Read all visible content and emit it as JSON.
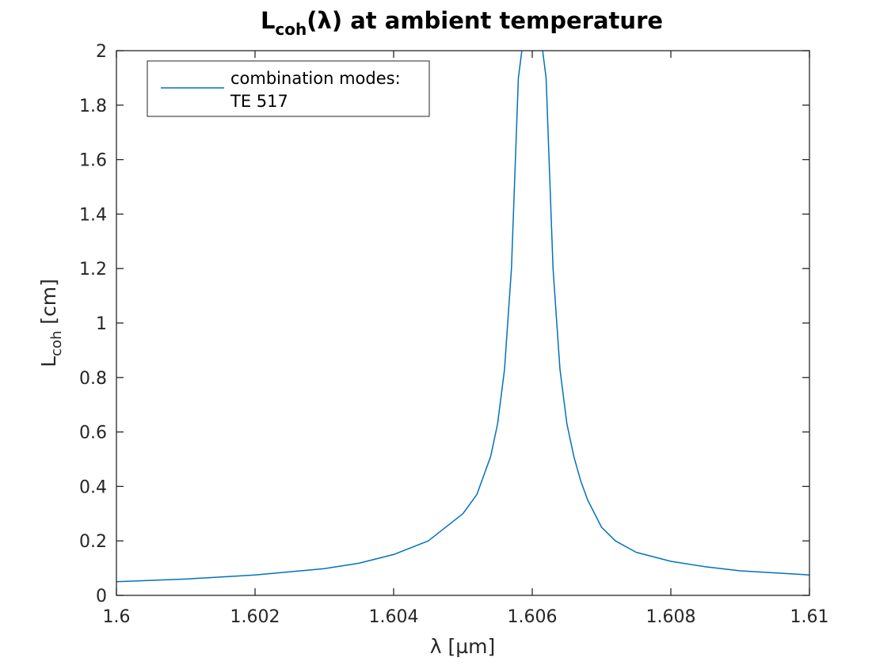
{
  "chart_data": {
    "type": "line",
    "title": {
      "main": "L",
      "sub": "coh",
      "rest": "(λ) at ambient temperature"
    },
    "xlabel": "λ [µm]",
    "ylabel": {
      "main": "L",
      "sub": "coh",
      "rest": " [cm]"
    },
    "xlim": [
      1.6,
      1.61
    ],
    "ylim": [
      0,
      2
    ],
    "xticks": [
      1.6,
      1.602,
      1.604,
      1.606,
      1.608,
      1.61
    ],
    "xtick_labels": [
      "1.6",
      "1.602",
      "1.604",
      "1.606",
      "1.608",
      "1.61"
    ],
    "yticks": [
      0,
      0.2,
      0.4,
      0.6,
      0.8,
      1,
      1.2,
      1.4,
      1.6,
      1.8,
      2
    ],
    "ytick_labels": [
      "0",
      "0.2",
      "0.4",
      "0.6",
      "0.8",
      "1",
      "1.2",
      "1.4",
      "1.6",
      "1.8",
      "2"
    ],
    "grid": false,
    "legend_position": "top-left",
    "legend_lines": [
      "combination modes:",
      "TE 517"
    ],
    "series": [
      {
        "color": "#0072BD",
        "x": [
          1.6,
          1.601,
          1.602,
          1.603,
          1.6035,
          1.604,
          1.6045,
          1.605,
          1.6052,
          1.6054,
          1.6055,
          1.6056,
          1.6057,
          1.6058,
          1.60585,
          1.606,
          1.60615,
          1.6062,
          1.6063,
          1.6064,
          1.6065,
          1.6066,
          1.6067,
          1.6068,
          1.607,
          1.6072,
          1.6075,
          1.608,
          1.6085,
          1.609,
          1.61
        ],
        "y": [
          0.05,
          0.06,
          0.075,
          0.098,
          0.118,
          0.15,
          0.2,
          0.3,
          0.37,
          0.51,
          0.63,
          0.83,
          1.2,
          1.9,
          2.0,
          null,
          2.0,
          1.9,
          1.2,
          0.83,
          0.63,
          0.51,
          0.42,
          0.35,
          0.25,
          0.2,
          0.158,
          0.125,
          0.105,
          0.09,
          0.075
        ]
      }
    ]
  }
}
